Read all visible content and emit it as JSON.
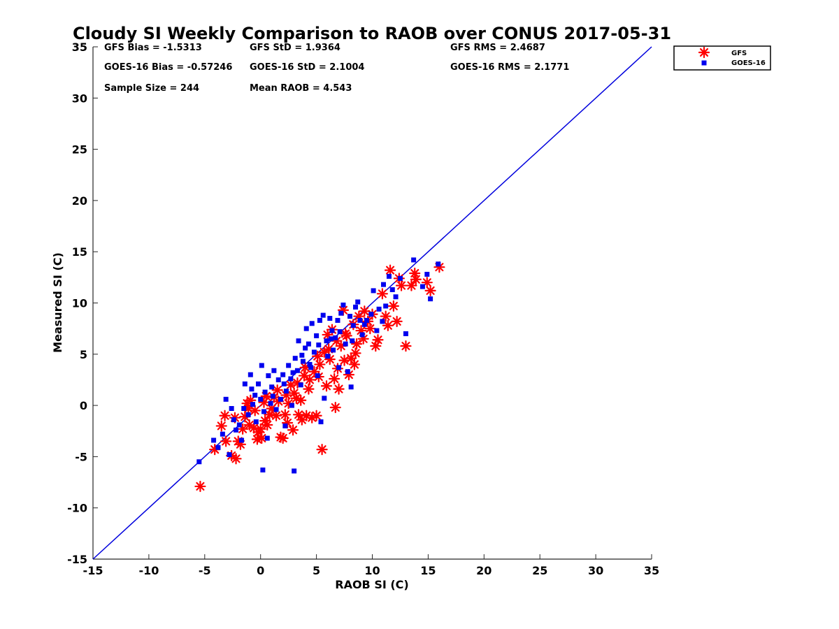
{
  "chart_data": {
    "type": "scatter",
    "title": "Cloudy SI Weekly Comparison to RAOB over CONUS 2017-05-31",
    "xlabel": "RAOB SI (C)",
    "ylabel": "Measured SI (C)",
    "xlim": [
      -15,
      35
    ],
    "ylim": [
      -15,
      35
    ],
    "xticks": [
      "-15",
      "-10",
      "-5",
      "0",
      "5",
      "10",
      "15",
      "20",
      "25",
      "30",
      "35"
    ],
    "yticks": [
      "35",
      "30",
      "25",
      "20",
      "15",
      "10",
      "5",
      "0",
      "-5",
      "-10",
      "-15"
    ],
    "grid": false,
    "legend_position": "top-right",
    "reference_line": {
      "x": [
        -15,
        35
      ],
      "y": [
        -15,
        35
      ],
      "color": "#0000dd"
    },
    "stats": {
      "gfs_bias": "GFS Bias = -1.5313",
      "gfs_std": "GFS StD = 1.9364",
      "gfs_rms": "GFS RMS = 2.4687",
      "goes_bias": "GOES-16 Bias = -0.57246",
      "goes_std": "GOES-16 StD = 2.1004",
      "goes_rms": "GOES-16 RMS = 2.1771",
      "sample_size": "Sample Size = 244",
      "mean_raob": "Mean RAOB = 4.543"
    },
    "series": [
      {
        "name": "GFS",
        "color": "#ff0000",
        "marker": "asterisk",
        "points": [
          [
            -5.4,
            -7.9
          ],
          [
            -4.1,
            -4.3
          ],
          [
            -3.5,
            -2.0
          ],
          [
            -3.1,
            -3.5
          ],
          [
            -2.6,
            -4.9
          ],
          [
            -2.2,
            -5.2
          ],
          [
            -2.3,
            -1.2
          ],
          [
            -2.0,
            -3.5
          ],
          [
            -1.8,
            -3.8
          ],
          [
            -1.6,
            -2.3
          ],
          [
            -1.4,
            -1.1
          ],
          [
            -1.2,
            0.2
          ],
          [
            -1.0,
            -1.9
          ],
          [
            -0.9,
            0.5
          ],
          [
            -0.6,
            -2.2
          ],
          [
            -0.5,
            -0.5
          ],
          [
            -0.3,
            -3.3
          ],
          [
            -0.2,
            -2.6
          ],
          [
            0.0,
            -2.3
          ],
          [
            0.1,
            -3.2
          ],
          [
            0.3,
            0.3
          ],
          [
            0.4,
            -1.5
          ],
          [
            0.6,
            -1.9
          ],
          [
            0.8,
            -0.9
          ],
          [
            1.0,
            -0.3
          ],
          [
            1.2,
            0.8
          ],
          [
            1.4,
            -1.0
          ],
          [
            1.6,
            0.4
          ],
          [
            1.8,
            -3.1
          ],
          [
            2.0,
            -3.2
          ],
          [
            2.2,
            -0.9
          ],
          [
            2.4,
            -1.7
          ],
          [
            2.5,
            0.2
          ],
          [
            2.7,
            2.0
          ],
          [
            2.9,
            -2.4
          ],
          [
            3.0,
            1.2
          ],
          [
            3.2,
            0.7
          ],
          [
            3.4,
            -0.9
          ],
          [
            3.6,
            0.5
          ],
          [
            3.7,
            -1.4
          ],
          [
            3.9,
            2.9
          ],
          [
            4.1,
            -1.0
          ],
          [
            4.3,
            1.6
          ],
          [
            4.4,
            2.5
          ],
          [
            4.6,
            -1.2
          ],
          [
            4.8,
            3.3
          ],
          [
            5.0,
            -1.0
          ],
          [
            5.2,
            2.8
          ],
          [
            5.3,
            4.0
          ],
          [
            5.5,
            -4.3
          ],
          [
            5.7,
            5.2
          ],
          [
            5.9,
            1.9
          ],
          [
            6.0,
            6.9
          ],
          [
            6.2,
            4.5
          ],
          [
            6.4,
            7.4
          ],
          [
            6.6,
            2.6
          ],
          [
            6.7,
            -0.2
          ],
          [
            6.9,
            3.6
          ],
          [
            7.0,
            1.6
          ],
          [
            7.2,
            5.8
          ],
          [
            7.4,
            9.3
          ],
          [
            7.5,
            4.4
          ],
          [
            7.7,
            6.8
          ],
          [
            7.9,
            3.0
          ],
          [
            8.1,
            4.6
          ],
          [
            8.3,
            7.9
          ],
          [
            8.5,
            5.1
          ],
          [
            8.6,
            6.0
          ],
          [
            8.8,
            8.7
          ],
          [
            9.0,
            7.3
          ],
          [
            9.3,
            9.2
          ],
          [
            9.6,
            8.2
          ],
          [
            9.8,
            7.5
          ],
          [
            10.3,
            5.8
          ],
          [
            10.5,
            6.4
          ],
          [
            10.9,
            10.9
          ],
          [
            11.2,
            8.7
          ],
          [
            11.4,
            7.8
          ],
          [
            11.6,
            13.2
          ],
          [
            11.9,
            9.7
          ],
          [
            12.2,
            8.2
          ],
          [
            12.6,
            11.7
          ],
          [
            13.0,
            5.8
          ],
          [
            13.8,
            12.9
          ],
          [
            13.9,
            12.3
          ],
          [
            14.9,
            12.0
          ],
          [
            15.2,
            11.2
          ],
          [
            16.0,
            13.5
          ],
          [
            -3.2,
            -1.0
          ],
          [
            -1.1,
            -0.3
          ],
          [
            0.5,
            0.9
          ],
          [
            1.5,
            1.5
          ],
          [
            2.3,
            1.0
          ],
          [
            3.3,
            2.2
          ],
          [
            4.0,
            3.7
          ],
          [
            5.1,
            4.8
          ],
          [
            6.1,
            5.5
          ],
          [
            6.8,
            6.3
          ],
          [
            7.6,
            7.0
          ],
          [
            8.4,
            4.0
          ],
          [
            9.2,
            6.5
          ],
          [
            10.0,
            8.9
          ],
          [
            12.4,
            12.4
          ],
          [
            13.5,
            11.7
          ]
        ]
      },
      {
        "name": "GOES-16",
        "color": "#0000ee",
        "marker": "square",
        "points": [
          [
            -5.5,
            -5.5
          ],
          [
            -4.2,
            -3.4
          ],
          [
            -3.8,
            -4.1
          ],
          [
            -3.1,
            0.6
          ],
          [
            -2.8,
            -4.8
          ],
          [
            -2.6,
            -0.3
          ],
          [
            -2.4,
            -1.4
          ],
          [
            -2.2,
            -2.4
          ],
          [
            -1.9,
            -1.9
          ],
          [
            -1.7,
            -3.4
          ],
          [
            -1.5,
            -0.3
          ],
          [
            -1.4,
            2.1
          ],
          [
            -1.1,
            -0.9
          ],
          [
            -0.9,
            3.0
          ],
          [
            -0.7,
            0.1
          ],
          [
            -0.5,
            1.0
          ],
          [
            -0.4,
            -1.6
          ],
          [
            -0.2,
            2.1
          ],
          [
            0.0,
            0.6
          ],
          [
            0.1,
            3.9
          ],
          [
            0.2,
            -6.3
          ],
          [
            0.4,
            1.3
          ],
          [
            0.6,
            -3.2
          ],
          [
            0.7,
            2.9
          ],
          [
            0.9,
            0.2
          ],
          [
            1.0,
            1.8
          ],
          [
            1.2,
            3.4
          ],
          [
            1.4,
            -0.4
          ],
          [
            1.6,
            2.5
          ],
          [
            1.8,
            0.6
          ],
          [
            2.0,
            3.0
          ],
          [
            2.2,
            -2.0
          ],
          [
            2.3,
            1.4
          ],
          [
            2.5,
            3.9
          ],
          [
            2.7,
            2.6
          ],
          [
            2.8,
            0.0
          ],
          [
            3.0,
            -6.4
          ],
          [
            3.1,
            4.6
          ],
          [
            3.3,
            3.4
          ],
          [
            3.4,
            6.3
          ],
          [
            3.6,
            2.0
          ],
          [
            3.8,
            4.3
          ],
          [
            4.0,
            5.6
          ],
          [
            4.1,
            7.5
          ],
          [
            4.3,
            6.0
          ],
          [
            4.5,
            3.7
          ],
          [
            4.6,
            8.0
          ],
          [
            4.8,
            5.2
          ],
          [
            5.0,
            6.8
          ],
          [
            5.1,
            2.9
          ],
          [
            5.3,
            8.3
          ],
          [
            5.4,
            -1.6
          ],
          [
            5.6,
            8.8
          ],
          [
            5.7,
            0.7
          ],
          [
            5.9,
            6.3
          ],
          [
            6.0,
            4.8
          ],
          [
            6.2,
            8.5
          ],
          [
            6.4,
            7.3
          ],
          [
            6.5,
            5.4
          ],
          [
            6.7,
            6.6
          ],
          [
            6.9,
            8.3
          ],
          [
            7.0,
            3.7
          ],
          [
            7.2,
            9.0
          ],
          [
            7.4,
            9.8
          ],
          [
            7.6,
            6.0
          ],
          [
            7.8,
            3.3
          ],
          [
            8.0,
            8.7
          ],
          [
            8.1,
            1.8
          ],
          [
            8.3,
            7.8
          ],
          [
            8.5,
            9.6
          ],
          [
            8.7,
            10.1
          ],
          [
            8.9,
            8.3
          ],
          [
            9.1,
            6.9
          ],
          [
            9.5,
            8.3
          ],
          [
            9.9,
            8.9
          ],
          [
            10.1,
            11.2
          ],
          [
            10.4,
            7.3
          ],
          [
            10.9,
            8.2
          ],
          [
            11.0,
            11.8
          ],
          [
            11.2,
            9.7
          ],
          [
            11.5,
            12.6
          ],
          [
            11.8,
            11.3
          ],
          [
            12.1,
            10.6
          ],
          [
            12.5,
            12.4
          ],
          [
            13.0,
            7.0
          ],
          [
            13.7,
            14.2
          ],
          [
            14.5,
            11.6
          ],
          [
            14.9,
            12.8
          ],
          [
            15.2,
            10.4
          ],
          [
            15.9,
            13.8
          ],
          [
            -3.4,
            -2.8
          ],
          [
            -0.8,
            1.6
          ],
          [
            0.3,
            -0.6
          ],
          [
            1.1,
            0.9
          ],
          [
            2.1,
            2.1
          ],
          [
            2.9,
            3.2
          ],
          [
            3.7,
            4.9
          ],
          [
            4.4,
            4.0
          ],
          [
            5.2,
            5.9
          ],
          [
            6.3,
            6.5
          ],
          [
            7.1,
            7.2
          ],
          [
            8.2,
            6.3
          ],
          [
            9.3,
            7.9
          ],
          [
            10.6,
            9.4
          ]
        ]
      }
    ]
  }
}
